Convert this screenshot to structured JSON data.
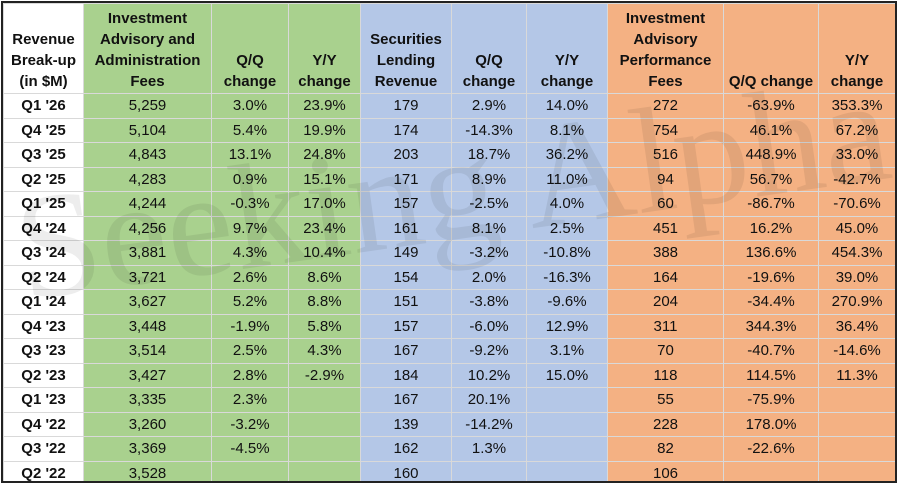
{
  "watermark": "Seeking Alpha",
  "table": {
    "headers": [
      "Revenue Break-up (in $M)",
      "Investment Advisory and Administration Fees",
      "Q/Q change",
      "Y/Y change",
      "Securities Lending Revenue",
      "Q/Q change",
      "Y/Y change",
      "Investment Advisory Performance Fees",
      "Q/Q change",
      "Y/Y change"
    ],
    "rows": [
      [
        "Q1 '26",
        "5,259",
        "3.0%",
        "23.9%",
        "179",
        "2.9%",
        "14.0%",
        "272",
        "-63.9%",
        "353.3%"
      ],
      [
        "Q4 '25",
        "5,104",
        "5.4%",
        "19.9%",
        "174",
        "-14.3%",
        "8.1%",
        "754",
        "46.1%",
        "67.2%"
      ],
      [
        "Q3 '25",
        "4,843",
        "13.1%",
        "24.8%",
        "203",
        "18.7%",
        "36.2%",
        "516",
        "448.9%",
        "33.0%"
      ],
      [
        "Q2 '25",
        "4,283",
        "0.9%",
        "15.1%",
        "171",
        "8.9%",
        "11.0%",
        "94",
        "56.7%",
        "-42.7%"
      ],
      [
        "Q1 '25",
        "4,244",
        "-0.3%",
        "17.0%",
        "157",
        "-2.5%",
        "4.0%",
        "60",
        "-86.7%",
        "-70.6%"
      ],
      [
        "Q4 '24",
        "4,256",
        "9.7%",
        "23.4%",
        "161",
        "8.1%",
        "2.5%",
        "451",
        "16.2%",
        "45.0%"
      ],
      [
        "Q3 '24",
        "3,881",
        "4.3%",
        "10.4%",
        "149",
        "-3.2%",
        "-10.8%",
        "388",
        "136.6%",
        "454.3%"
      ],
      [
        "Q2 '24",
        "3,721",
        "2.6%",
        "8.6%",
        "154",
        "2.0%",
        "-16.3%",
        "164",
        "-19.6%",
        "39.0%"
      ],
      [
        "Q1 '24",
        "3,627",
        "5.2%",
        "8.8%",
        "151",
        "-3.8%",
        "-9.6%",
        "204",
        "-34.4%",
        "270.9%"
      ],
      [
        "Q4 '23",
        "3,448",
        "-1.9%",
        "5.8%",
        "157",
        "-6.0%",
        "12.9%",
        "311",
        "344.3%",
        "36.4%"
      ],
      [
        "Q3 '23",
        "3,514",
        "2.5%",
        "4.3%",
        "167",
        "-9.2%",
        "3.1%",
        "70",
        "-40.7%",
        "-14.6%"
      ],
      [
        "Q2 '23",
        "3,427",
        "2.8%",
        "-2.9%",
        "184",
        "10.2%",
        "15.0%",
        "118",
        "114.5%",
        "11.3%"
      ],
      [
        "Q1 '23",
        "3,335",
        "2.3%",
        null,
        "167",
        "20.1%",
        null,
        "55",
        "-75.9%",
        null
      ],
      [
        "Q4 '22",
        "3,260",
        "-3.2%",
        null,
        "139",
        "-14.2%",
        null,
        "228",
        "178.0%",
        null
      ],
      [
        "Q3 '22",
        "3,369",
        "-4.5%",
        null,
        "162",
        "1.3%",
        null,
        "82",
        "-22.6%",
        null
      ],
      [
        "Q2 '22",
        "3,528",
        null,
        null,
        "160",
        null,
        null,
        "106",
        null,
        null
      ]
    ]
  }
}
